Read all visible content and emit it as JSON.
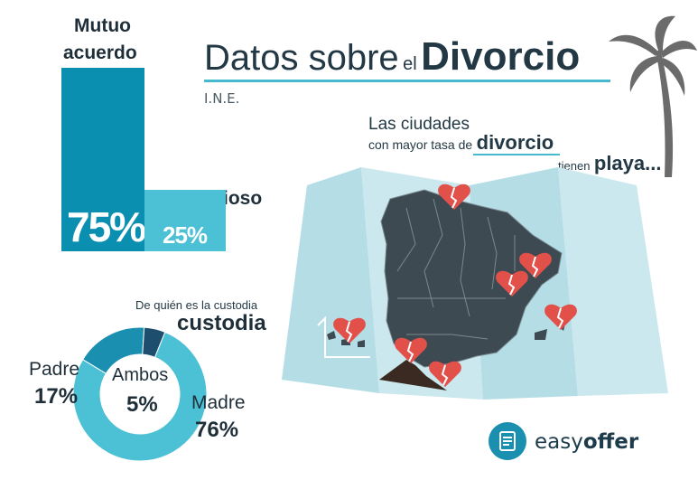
{
  "title": {
    "part1": "Datos sobre",
    "part2": "el",
    "part3": "Divorcio",
    "source": "I.N.E."
  },
  "agreement": {
    "mutuo_label_line1": "Mutuo",
    "mutuo_label_line2": "acuerdo",
    "mutuo_value": "75%",
    "contencioso_label": "Contencioso",
    "contencioso_value": "25%"
  },
  "beach": {
    "line1": "Las ciudades",
    "line2a": "con mayor tasa de",
    "line2b": "divorcio",
    "line3a": "tienen",
    "line3b": "playa..."
  },
  "custody": {
    "question": "De quién es la custodia",
    "heading": "custodia",
    "padre_label": "Padre",
    "padre_value": "17%",
    "ambos_label": "Ambos",
    "ambos_value": "5%",
    "madre_label": "Madre",
    "madre_value": "76%"
  },
  "brand": {
    "name_light": "easy",
    "name_bold": "offer"
  },
  "colors": {
    "dark_teal": "#0a8fb0",
    "light_teal": "#4cc0d4",
    "navy": "#1d4e6e",
    "heart": "#e2504a",
    "map_bg": "#b9dfe7"
  },
  "chart_data": [
    {
      "type": "bar",
      "categories": [
        "Mutuo acuerdo",
        "Contencioso"
      ],
      "values": [
        75,
        25
      ],
      "ylim": [
        0,
        100
      ]
    },
    {
      "type": "pie",
      "title": "De quién es la custodia",
      "categories": [
        "Madre",
        "Padre",
        "Ambos"
      ],
      "values": [
        76,
        17,
        5
      ]
    }
  ]
}
